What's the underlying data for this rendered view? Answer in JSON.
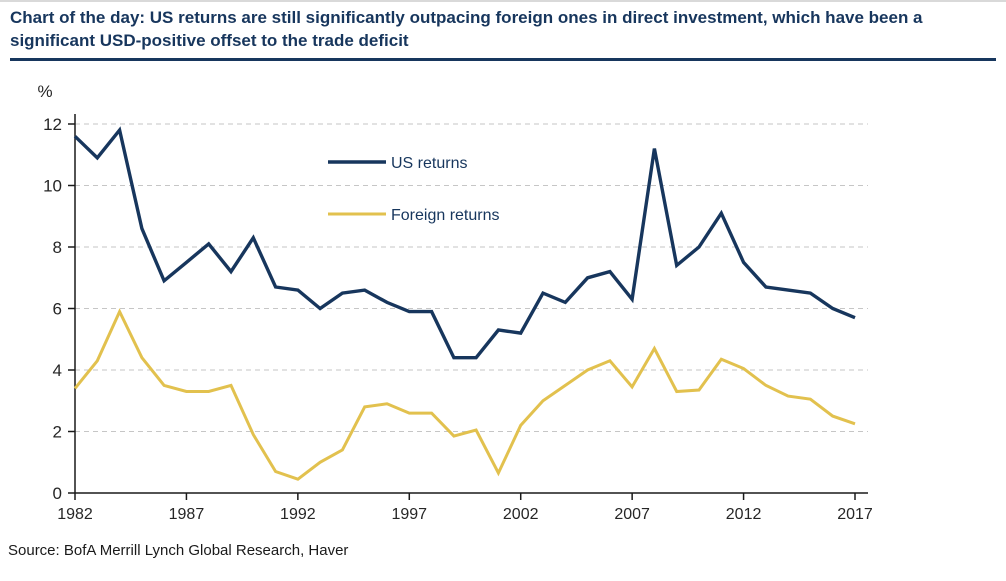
{
  "page": {
    "title": "Chart of the day: US returns are still significantly outpacing foreign ones in direct investment, which have been a significant USD-positive offset to the trade deficit",
    "source": "Source: BofA Merrill Lynch Global Research, Haver"
  },
  "colors": {
    "navy": "#17365d",
    "gold": "#e2c14e",
    "grid": "#c6c6c6",
    "axis": "#1a1a1a",
    "tick_text": "#262626"
  },
  "chart_data": {
    "type": "line",
    "title": "",
    "ylabel": "%",
    "xlabel": "",
    "ylim": [
      0,
      12
    ],
    "yticks": [
      0,
      2,
      4,
      6,
      8,
      10,
      12
    ],
    "xticks": [
      1982,
      1987,
      1992,
      1997,
      2002,
      2007,
      2012,
      2017
    ],
    "grid": "dashed-horizontal",
    "legend_position": "inside-upper-left",
    "x": [
      1982,
      1983,
      1984,
      1985,
      1986,
      1987,
      1988,
      1989,
      1990,
      1991,
      1992,
      1993,
      1994,
      1995,
      1996,
      1997,
      1998,
      1999,
      2000,
      2001,
      2002,
      2003,
      2004,
      2005,
      2006,
      2007,
      2008,
      2009,
      2010,
      2011,
      2012,
      2013,
      2014,
      2015,
      2016,
      2017
    ],
    "series": [
      {
        "name": "US returns",
        "color": "#17365d",
        "values": [
          11.6,
          10.9,
          11.8,
          8.6,
          6.9,
          7.5,
          8.1,
          7.2,
          8.3,
          6.7,
          6.6,
          6.0,
          6.5,
          6.6,
          6.2,
          5.9,
          5.9,
          4.4,
          4.4,
          5.3,
          5.2,
          6.5,
          6.2,
          7.0,
          7.2,
          6.3,
          11.2,
          7.4,
          8.0,
          9.1,
          7.5,
          6.7,
          6.6,
          6.5,
          6.0,
          5.7
        ]
      },
      {
        "name": "Foreign returns",
        "color": "#e2c14e",
        "values": [
          3.4,
          4.3,
          5.9,
          4.4,
          3.5,
          3.3,
          3.3,
          3.5,
          1.9,
          0.7,
          0.45,
          1.0,
          1.4,
          2.8,
          2.9,
          2.6,
          2.6,
          1.85,
          2.05,
          0.65,
          2.2,
          3.0,
          3.5,
          4.0,
          4.3,
          3.45,
          4.7,
          3.3,
          3.35,
          4.35,
          4.05,
          3.5,
          3.15,
          3.05,
          2.5,
          2.25
        ]
      }
    ]
  }
}
